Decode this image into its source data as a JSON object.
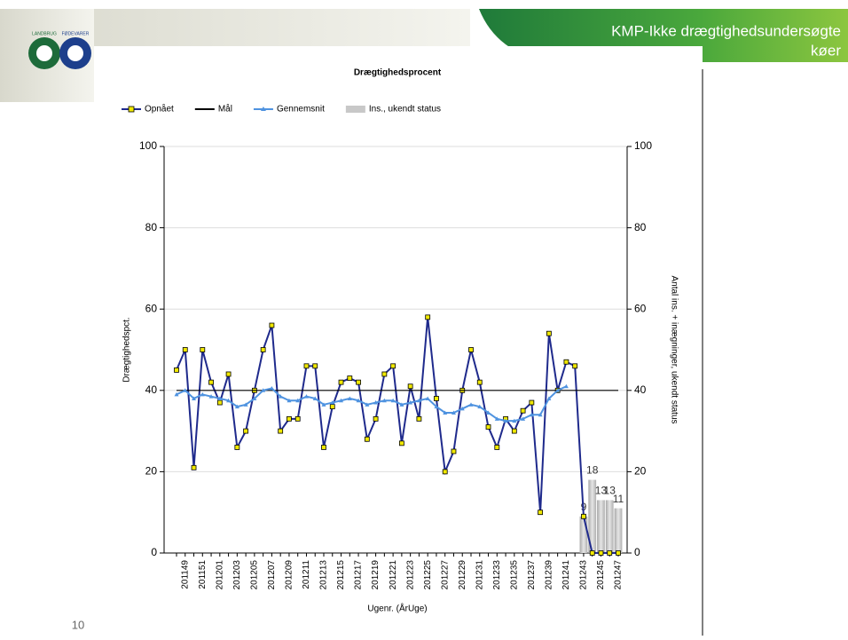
{
  "header": {
    "title_lines": [
      "KMP-Ikke drægtighedsundersøgte",
      "køer"
    ]
  },
  "logo": {
    "left": "LANDBRUG",
    "right": "FØDEVARER"
  },
  "page_number": "10",
  "chart_data": {
    "type": "line",
    "title": "Drægtighedsprocent",
    "x_label": "Ugenr. (ÅrUge)",
    "y_label": "Drægtighedspct.",
    "y2_label": "Antal ins. + inægninger, ukendt status",
    "categories": [
      null,
      "201149",
      null,
      "201151",
      null,
      "201201",
      null,
      "201203",
      null,
      "201205",
      null,
      "201207",
      null,
      "201209",
      null,
      "201211",
      null,
      "201213",
      null,
      "201215",
      null,
      "201217",
      null,
      "201219",
      null,
      "201221",
      null,
      "201223",
      null,
      "201225",
      null,
      "201227",
      null,
      "201229",
      null,
      "201231",
      null,
      "201233",
      null,
      "201235",
      null,
      "201237",
      null,
      "201239",
      null,
      "201241",
      null,
      "201243",
      null,
      "201245",
      null,
      "201247"
    ],
    "series": [
      {
        "name": "Opnået",
        "type": "line",
        "color": "#1f2a8c",
        "marker": "square",
        "marker_color": "#f0e800",
        "values": [
          45,
          50,
          21,
          50,
          42,
          37,
          44,
          26,
          30,
          40,
          50,
          56,
          30,
          33,
          33,
          46,
          46,
          26,
          36,
          42,
          43,
          42,
          28,
          33,
          44,
          46,
          27,
          41,
          33,
          58,
          38,
          20,
          25,
          40,
          50,
          42,
          31,
          26,
          33,
          30,
          35,
          37,
          10,
          54,
          40,
          47,
          46,
          9,
          0,
          0,
          0,
          0
        ]
      },
      {
        "name": "Mål",
        "type": "line",
        "color": "#000000",
        "marker": "none",
        "values": [
          40,
          40,
          40,
          40,
          40,
          40,
          40,
          40,
          40,
          40,
          40,
          40,
          40,
          40,
          40,
          40,
          40,
          40,
          40,
          40,
          40,
          40,
          40,
          40,
          40,
          40,
          40,
          40,
          40,
          40,
          40,
          40,
          40,
          40,
          40,
          40,
          40,
          40,
          40,
          40,
          40,
          40,
          40,
          40,
          40,
          40,
          40,
          40,
          40,
          40,
          40,
          40
        ]
      },
      {
        "name": "Gennemsnit",
        "type": "line",
        "color": "#4f93e0",
        "marker": "triangle",
        "marker_color": "#4f93e0",
        "values": [
          39,
          40,
          38,
          39,
          38.5,
          38,
          37.5,
          36,
          36.5,
          38,
          40,
          40.5,
          38.5,
          37.5,
          37.5,
          38.5,
          38,
          36.5,
          37,
          37.5,
          38,
          37.5,
          36.5,
          37,
          37.5,
          37.5,
          36.5,
          37,
          37.5,
          38,
          36,
          34.5,
          34.5,
          35.5,
          36.5,
          36,
          34.5,
          33,
          32.5,
          32.5,
          33,
          34,
          34,
          38,
          40,
          41,
          null,
          null,
          null,
          null,
          null,
          null
        ]
      },
      {
        "name": "Ins., ukendt status",
        "type": "bar",
        "axis": "y2",
        "color": "#c8c8c8",
        "values": [
          null,
          null,
          null,
          null,
          null,
          null,
          null,
          null,
          null,
          null,
          null,
          null,
          null,
          null,
          null,
          null,
          null,
          null,
          null,
          null,
          null,
          null,
          null,
          null,
          null,
          null,
          null,
          null,
          null,
          null,
          null,
          null,
          null,
          null,
          null,
          null,
          null,
          null,
          null,
          null,
          null,
          null,
          null,
          null,
          null,
          null,
          null,
          9,
          18,
          13,
          13,
          11
        ]
      }
    ],
    "ylim": [
      0,
      100
    ],
    "yticks": [
      0,
      20,
      40,
      60,
      80,
      100
    ],
    "y2lim": [
      0,
      100
    ],
    "y2ticks": [
      0,
      20,
      40,
      60,
      80,
      100
    ],
    "grid": true,
    "legend": "top"
  }
}
